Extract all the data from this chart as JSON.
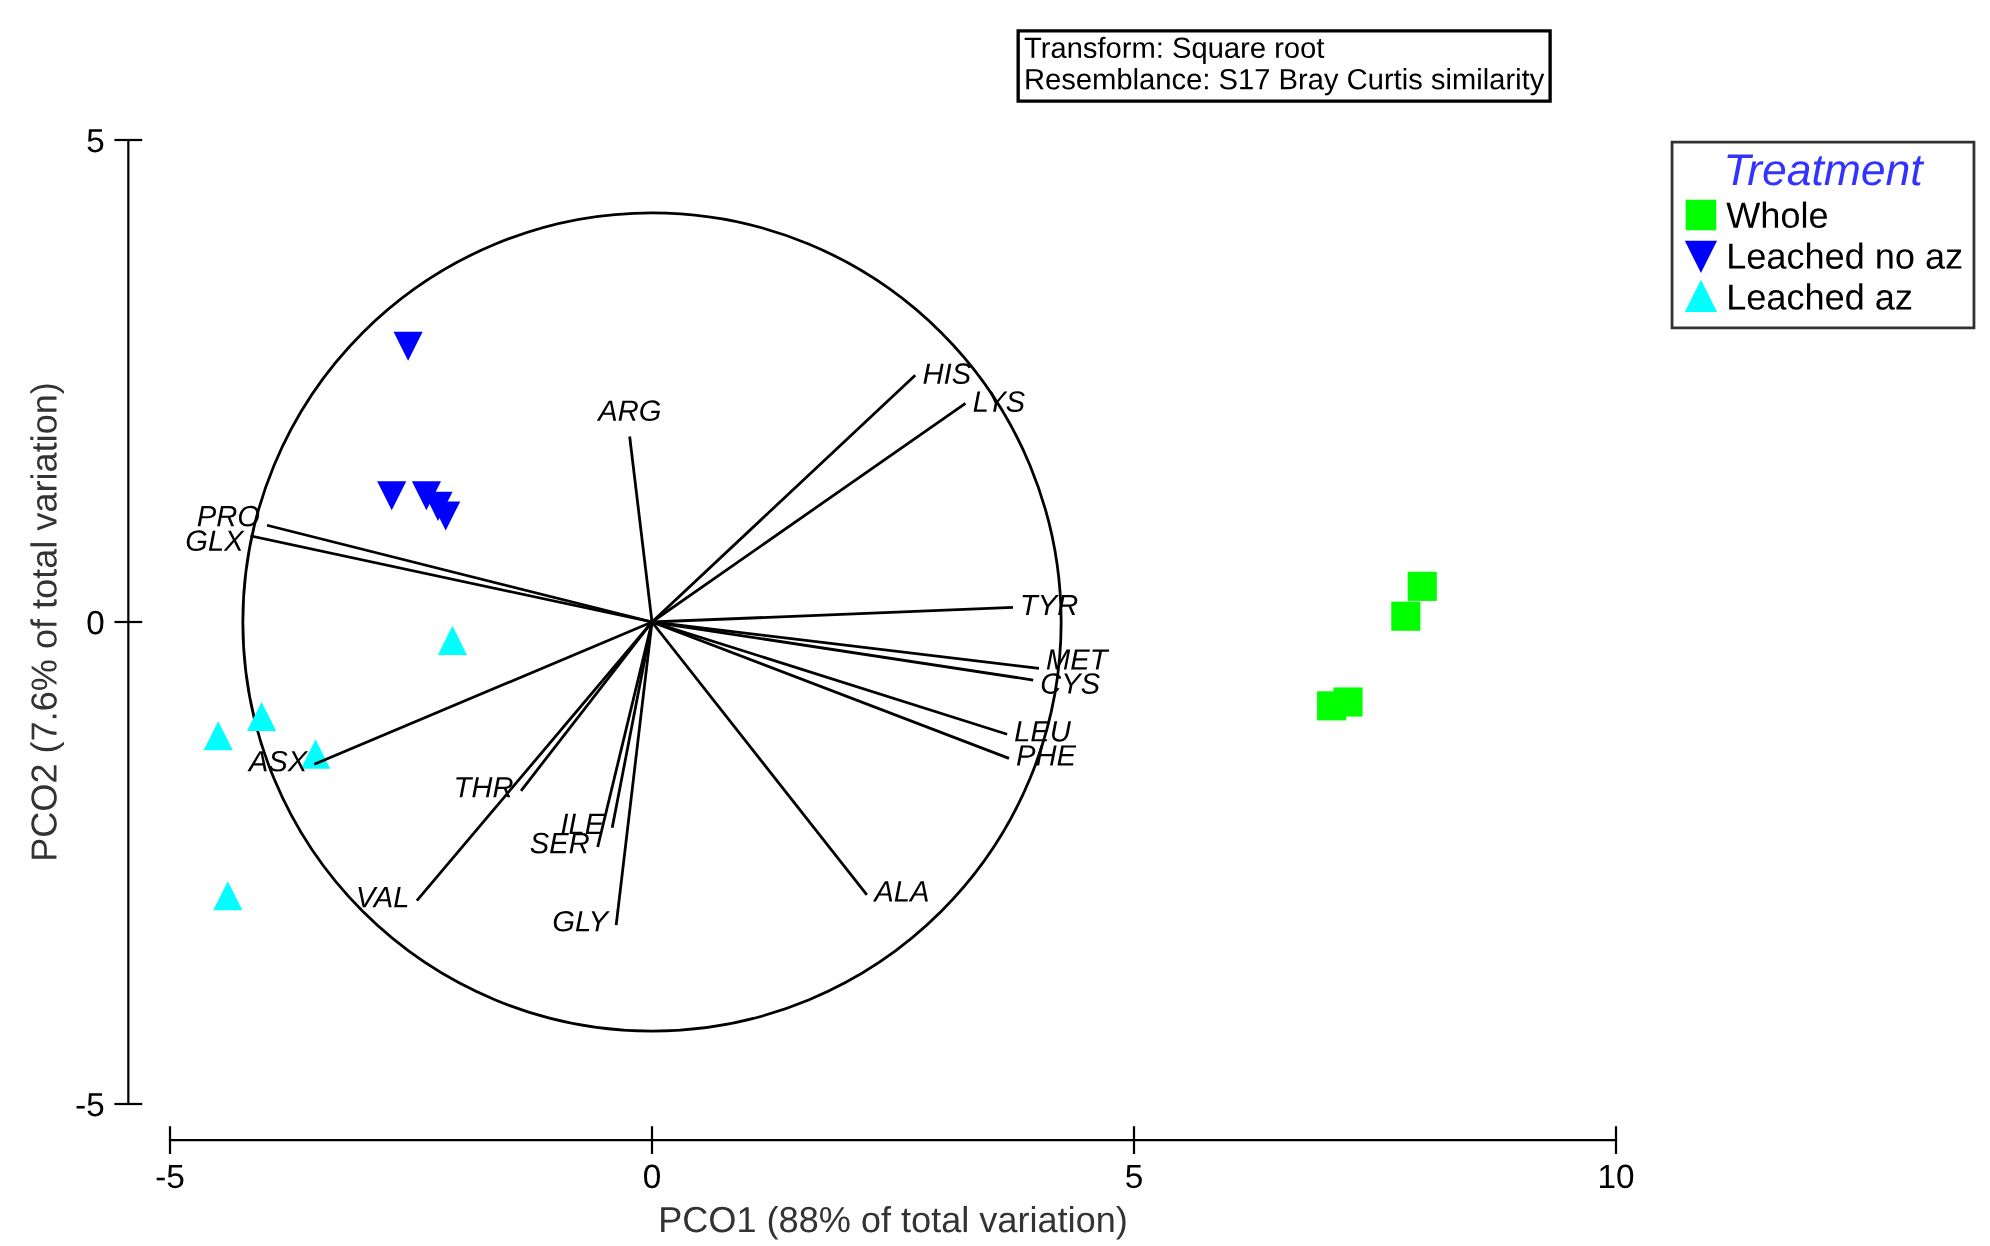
{
  "chart_data": {
    "type": "scatter",
    "xlabel": "PCO1 (88% of total variation)",
    "ylabel": "PCO2 (7.6% of total variation)",
    "legend_title": "Treatment",
    "legend": "top right",
    "grid": false,
    "xlim": [
      -5,
      10
    ],
    "ylim": [
      -5,
      5
    ],
    "xticks": [
      -5,
      0,
      5,
      10
    ],
    "yticks": [
      -5,
      0,
      5
    ],
    "annotations": [
      "Transform: Square root",
      "Resemblance: S17 Bray Curtis similarity"
    ],
    "series": [
      {
        "name": "Whole",
        "type": "scatter",
        "marker": "square",
        "color": "#00ff00",
        "x": [
          7.99,
          7.82,
          7.05,
          7.22
        ],
        "values": [
          0.37,
          0.06,
          -0.87,
          -0.83
        ]
      },
      {
        "name": "Leached no az",
        "type": "scatter",
        "marker": "triangle_down",
        "color": "#0000ff",
        "x": [
          -2.53,
          -2.7,
          -2.34,
          -2.22,
          -2.14
        ],
        "values": [
          2.86,
          1.31,
          1.31,
          1.2,
          1.1
        ]
      },
      {
        "name": "Leached az",
        "type": "scatter",
        "marker": "triangle",
        "color": "#00ffff",
        "x": [
          -2.07,
          -4.05,
          -4.5,
          -3.49,
          -4.4
        ],
        "values": [
          -0.19,
          -0.98,
          -1.18,
          -1.37,
          -2.84
        ]
      },
      {
        "name": "ARG",
        "type": "line",
        "color": "#000000",
        "x": [
          0,
          -0.23
        ],
        "values": [
          0,
          1.91
        ]
      },
      {
        "name": "PRO",
        "type": "line",
        "color": "#000000",
        "x": [
          0,
          -3.98
        ],
        "values": [
          0,
          1.0
        ]
      },
      {
        "name": "GLX",
        "type": "line",
        "color": "#000000",
        "x": [
          0,
          -4.15
        ],
        "values": [
          0,
          0.89
        ]
      },
      {
        "name": "ASX",
        "type": "line",
        "color": "#000000",
        "x": [
          0,
          -3.49
        ],
        "values": [
          0,
          -1.47
        ]
      },
      {
        "name": "THR",
        "type": "line",
        "color": "#000000",
        "x": [
          0,
          -1.35
        ],
        "values": [
          0,
          -1.74
        ]
      },
      {
        "name": "VAL",
        "type": "line",
        "color": "#000000",
        "x": [
          0,
          -2.43
        ],
        "values": [
          0,
          -2.88
        ]
      },
      {
        "name": "ILE",
        "type": "line",
        "color": "#000000",
        "x": [
          0,
          -0.41
        ],
        "values": [
          0,
          -2.12
        ]
      },
      {
        "name": "SER",
        "type": "line",
        "color": "#000000",
        "x": [
          0,
          -0.56
        ],
        "values": [
          0,
          -2.32
        ]
      },
      {
        "name": "GLY",
        "type": "line",
        "color": "#000000",
        "x": [
          0,
          -0.37
        ],
        "values": [
          0,
          -3.13
        ]
      },
      {
        "name": "HIS",
        "type": "line",
        "color": "#000000",
        "x": [
          0,
          2.72
        ],
        "values": [
          0,
          2.55
        ]
      },
      {
        "name": "LYS",
        "type": "line",
        "color": "#000000",
        "x": [
          0,
          3.24
        ],
        "values": [
          0,
          2.26
        ]
      },
      {
        "name": "TYR",
        "type": "line",
        "color": "#000000",
        "x": [
          0,
          3.73
        ],
        "values": [
          0,
          0.15
        ]
      },
      {
        "name": "MET",
        "type": "line",
        "color": "#000000",
        "x": [
          0,
          4.0
        ],
        "values": [
          0,
          -0.48
        ]
      },
      {
        "name": "CYS",
        "type": "line",
        "color": "#000000",
        "x": [
          0,
          3.94
        ],
        "values": [
          0,
          -0.6
        ]
      },
      {
        "name": "LEU",
        "type": "line",
        "color": "#000000",
        "x": [
          0,
          3.67
        ],
        "values": [
          0,
          -1.16
        ]
      },
      {
        "name": "PHE",
        "type": "line",
        "color": "#000000",
        "x": [
          0,
          3.69
        ],
        "values": [
          0,
          -1.41
        ]
      },
      {
        "name": "ALA",
        "type": "line",
        "color": "#000000",
        "x": [
          0,
          2.22
        ],
        "values": [
          0,
          -2.82
        ]
      }
    ]
  }
}
